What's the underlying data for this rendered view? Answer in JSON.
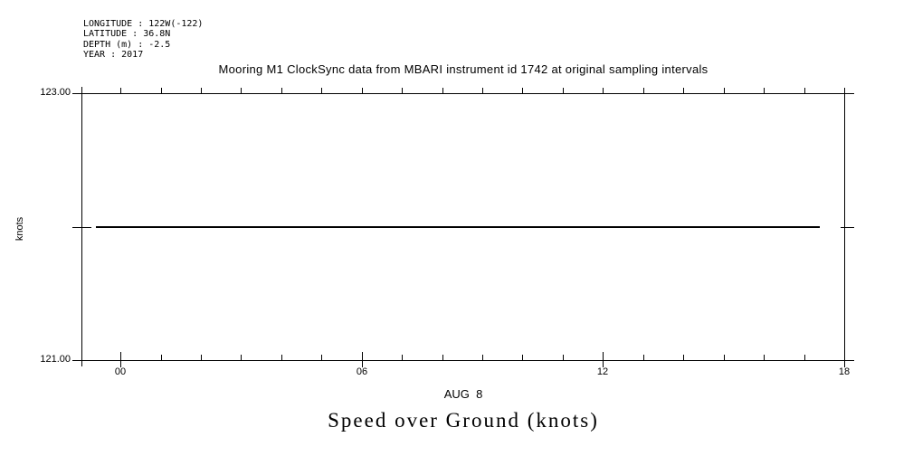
{
  "meta": {
    "lines": [
      "LONGITUDE : 122W(-122)",
      "LATITUDE : 36.8N",
      "DEPTH (m) : -2.5",
      "YEAR : 2017"
    ]
  },
  "chart_data": {
    "type": "line",
    "title": "Mooring M1 ClockSync data from MBARI instrument id 1742 at original sampling intervals",
    "ylabel": "knots",
    "x_axis_label": "AUG  8",
    "caption": "Speed over Ground (knots)",
    "x_unit": "hour of day on AUG 8",
    "x_range_hours": [
      -0.97,
      18.0
    ],
    "x_minor_tick_interval_hours": 1,
    "x_major_ticks": [
      {
        "hour": 0,
        "label": "00"
      },
      {
        "hour": 6,
        "label": "06"
      },
      {
        "hour": 12,
        "label": "12"
      },
      {
        "hour": 18,
        "label": "18"
      }
    ],
    "y_range": [
      121.0,
      123.0
    ],
    "y_ticks": [
      {
        "value": 121.0,
        "label": "121.00"
      },
      {
        "value": 122.0,
        "label": ""
      },
      {
        "value": 123.0,
        "label": "123.00"
      }
    ],
    "series": [
      {
        "name": "Speed over Ground",
        "style": "constant-line",
        "value_knots": 122.0,
        "x_start_hour": -0.6,
        "x_end_hour": 17.4,
        "color": "#000000"
      }
    ],
    "background": "#ffffff",
    "axis_color": "#000000",
    "grid": false,
    "legend": false
  }
}
